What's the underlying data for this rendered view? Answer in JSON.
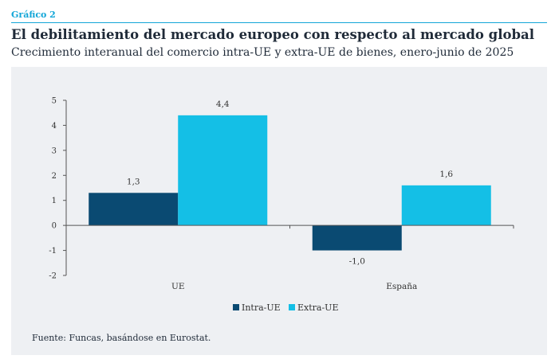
{
  "header": {
    "label": "Gráfico 2",
    "title": "El debilitamiento del mercado europeo con respecto al mercado global",
    "subtitle": "Crecimiento interanual del comercio intra-UE y extra-UE de bienes, enero-junio de 2025"
  },
  "source": "Fuente: Funcas, basándose en Eurostat.",
  "chart_data": {
    "type": "bar",
    "categories": [
      "UE",
      "España"
    ],
    "series": [
      {
        "name": "Intra-UE",
        "values": [
          1.3,
          -1.0
        ],
        "labels": [
          "1,3",
          "-1,0"
        ],
        "color": "#0a4a72"
      },
      {
        "name": "Extra-UE",
        "values": [
          4.4,
          1.6
        ],
        "labels": [
          "4,4",
          "1,6"
        ],
        "color": "#14bfe6"
      }
    ],
    "ylim": [
      -2,
      5
    ],
    "yticks": [
      5,
      4,
      3,
      2,
      1,
      0,
      -1,
      -2
    ],
    "ytick_labels": [
      "5",
      "4",
      "3",
      "2",
      "1",
      "0",
      "-1",
      "-2"
    ],
    "grid": false,
    "legend_position": "bottom-center",
    "xlabel": "",
    "ylabel": ""
  }
}
